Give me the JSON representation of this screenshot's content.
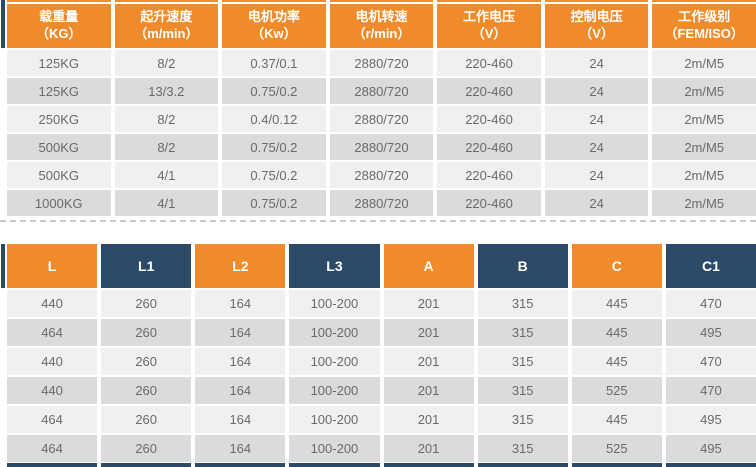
{
  "colors": {
    "header_orange": "#EF8B2A",
    "header_navy": "#2C4A68",
    "row_light": "#F1F0F0",
    "row_dark": "#DBDBDB",
    "body_text": "#6a6a6a",
    "header_text": "#ffffff"
  },
  "spec_table": {
    "columns": [
      {
        "line1": "载重量",
        "line2": "（KG）"
      },
      {
        "line1": "起升速度",
        "line2": "（m/min）"
      },
      {
        "line1": "电机功率",
        "line2": "（Kw）"
      },
      {
        "line1": "电机转速",
        "line2": "（r/min）"
      },
      {
        "line1": "工作电压",
        "line2": "（V）"
      },
      {
        "line1": "控制电压",
        "line2": "（V）"
      },
      {
        "line1": "工作级别",
        "line2": "（FEM/ISO）"
      }
    ],
    "rows": [
      [
        "125KG",
        "8/2",
        "0.37/0.1",
        "2880/720",
        "220-460",
        "24",
        "2m/M5"
      ],
      [
        "125KG",
        "13/3.2",
        "0.75/0.2",
        "2880/720",
        "220-460",
        "24",
        "2m/M5"
      ],
      [
        "250KG",
        "8/2",
        "0.4/0.12",
        "2880/720",
        "220-460",
        "24",
        "2m/M5"
      ],
      [
        "500KG",
        "8/2",
        "0.75/0.2",
        "2880/720",
        "220-460",
        "24",
        "2m/M5"
      ],
      [
        "500KG",
        "4/1",
        "0.75/0.2",
        "2880/720",
        "220-460",
        "24",
        "2m/M5"
      ],
      [
        "1000KG",
        "4/1",
        "0.75/0.2",
        "2880/720",
        "220-460",
        "24",
        "2m/M5"
      ]
    ]
  },
  "dimension_table": {
    "columns": [
      {
        "label": "L",
        "color": "orange"
      },
      {
        "label": "L1",
        "color": "navy"
      },
      {
        "label": "L2",
        "color": "orange"
      },
      {
        "label": "L3",
        "color": "navy"
      },
      {
        "label": "A",
        "color": "orange"
      },
      {
        "label": "B",
        "color": "navy"
      },
      {
        "label": "C",
        "color": "orange"
      },
      {
        "label": "C1",
        "color": "navy"
      }
    ],
    "rows": [
      [
        "440",
        "260",
        "164",
        "100-200",
        "201",
        "315",
        "445",
        "470"
      ],
      [
        "464",
        "260",
        "164",
        "100-200",
        "201",
        "315",
        "445",
        "495"
      ],
      [
        "440",
        "260",
        "164",
        "100-200",
        "201",
        "315",
        "445",
        "470"
      ],
      [
        "440",
        "260",
        "164",
        "100-200",
        "201",
        "315",
        "525",
        "470"
      ],
      [
        "464",
        "260",
        "164",
        "100-200",
        "201",
        "315",
        "445",
        "495"
      ],
      [
        "464",
        "260",
        "164",
        "100-200",
        "201",
        "315",
        "525",
        "495"
      ]
    ]
  }
}
